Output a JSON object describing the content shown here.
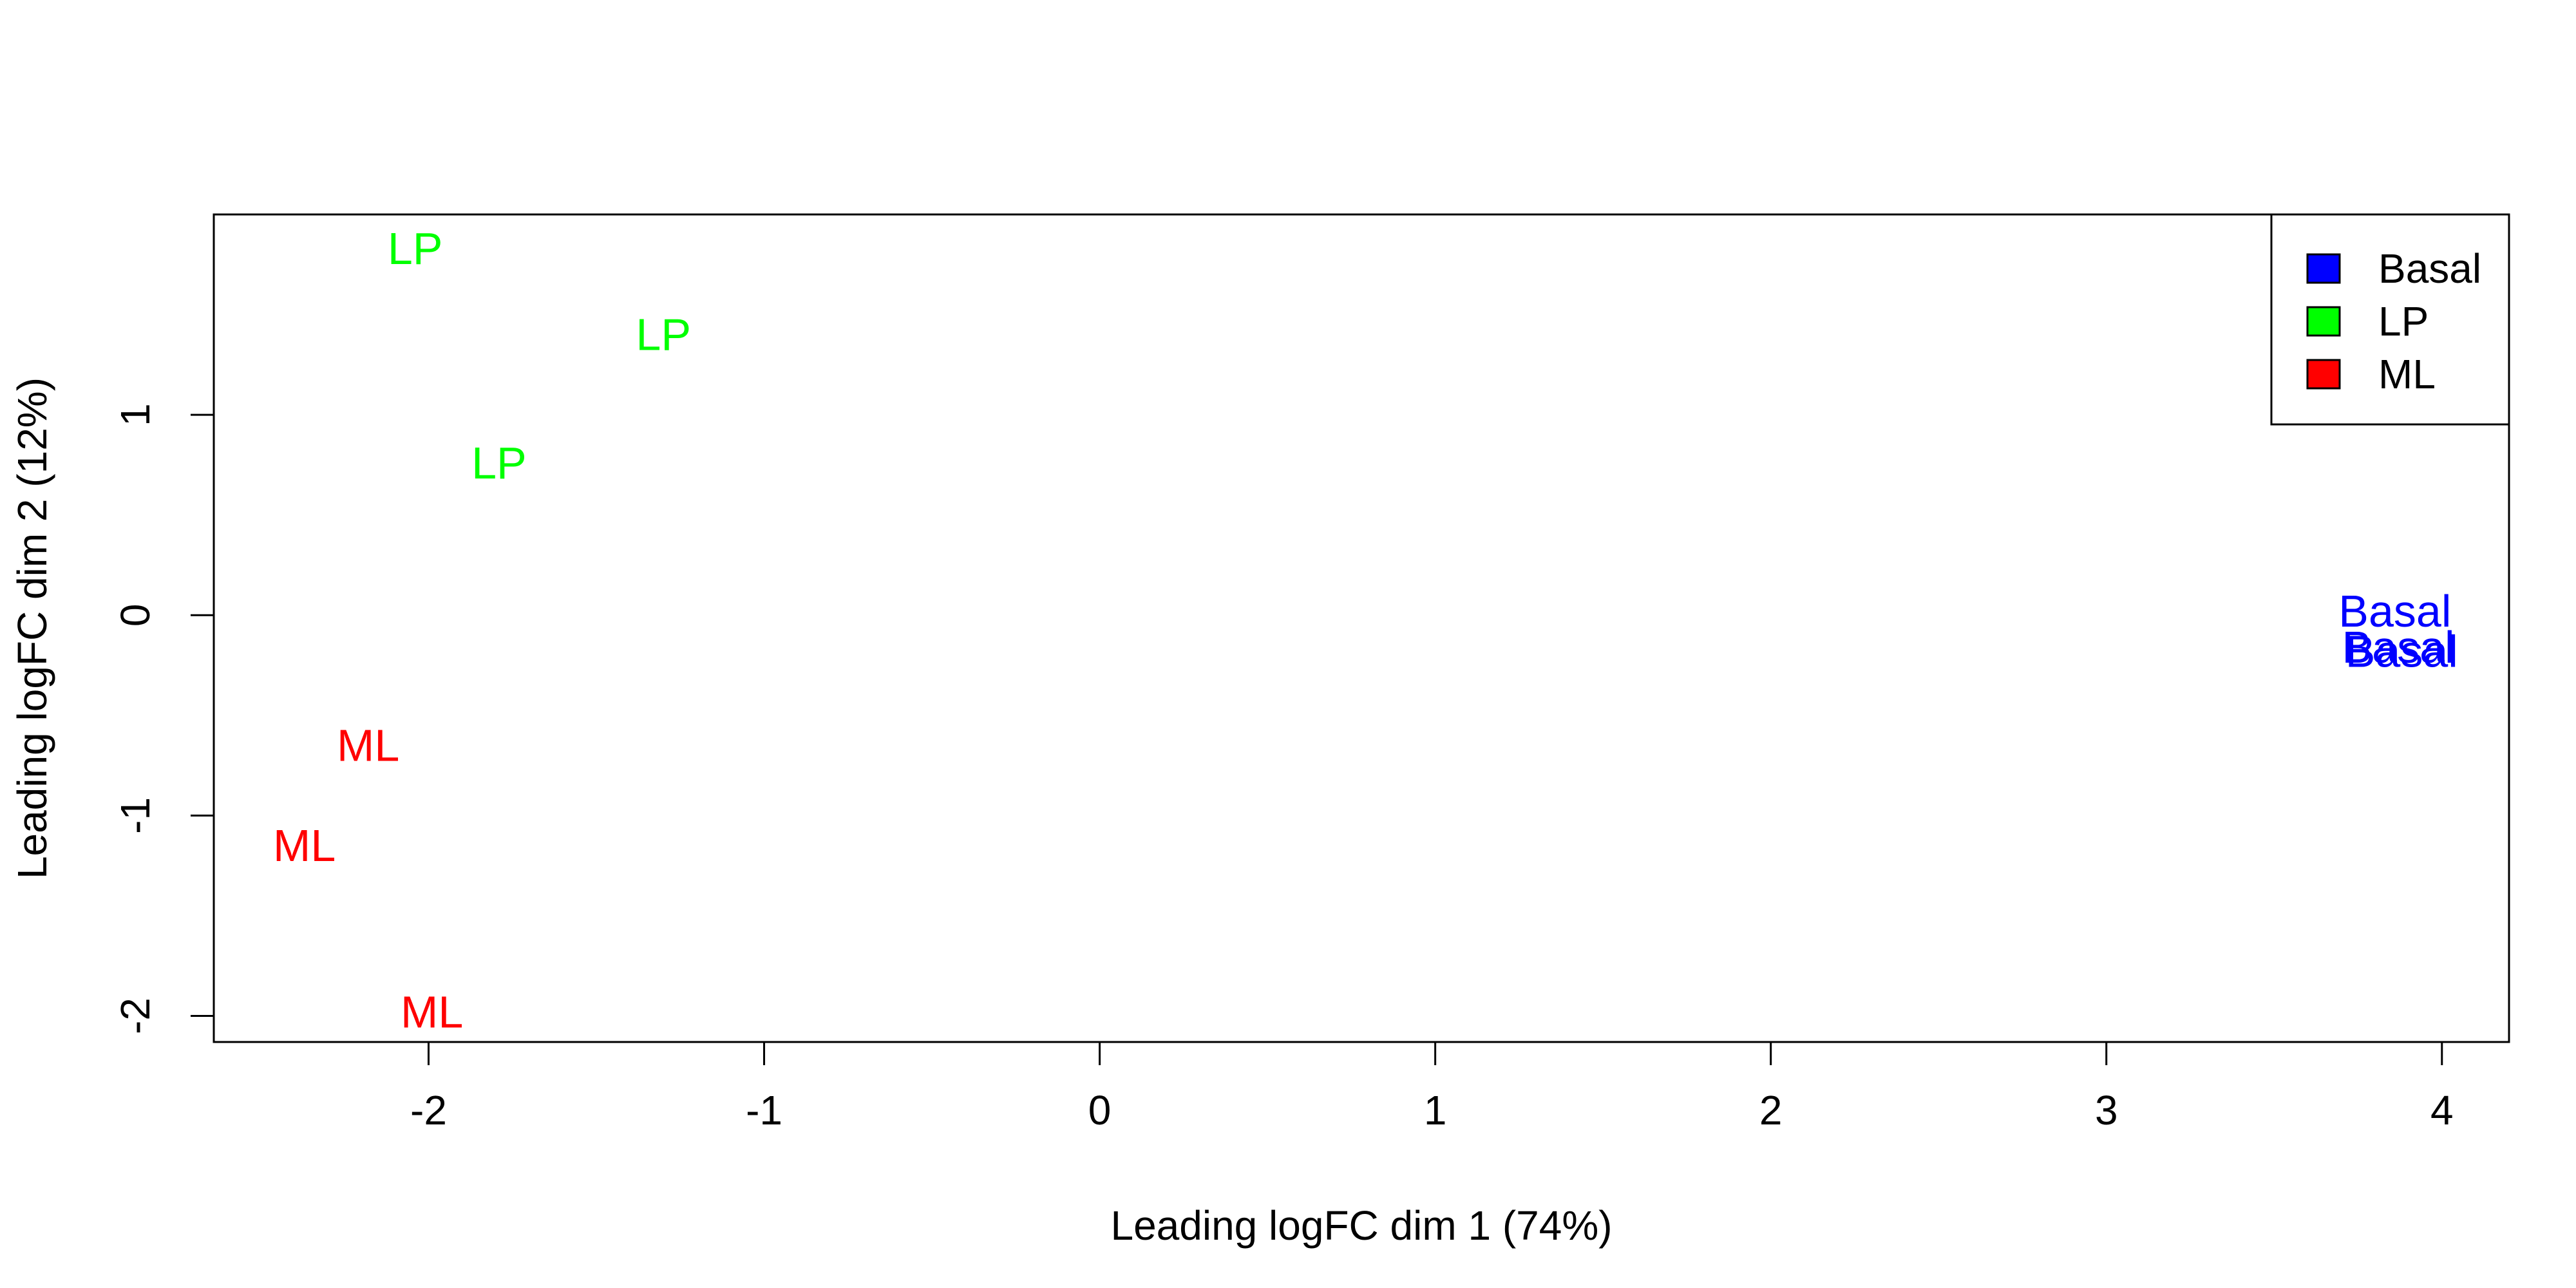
{
  "chart_data": {
    "type": "scatter",
    "title": "",
    "xlabel": "Leading logFC dim 1 (74%)",
    "ylabel": "Leading logFC dim 2 (12%)",
    "xlim": [
      -2.64,
      4.2
    ],
    "ylim": [
      -2.13,
      2.0
    ],
    "xticks": [
      -2,
      -1,
      0,
      1,
      2,
      3,
      4
    ],
    "yticks": [
      -2,
      -1,
      0,
      1
    ],
    "xtick_labels": [
      "-2",
      "-1",
      "0",
      "1",
      "2",
      "3",
      "4"
    ],
    "ytick_labels": [
      "-2",
      "-1",
      "0",
      "1"
    ],
    "grid": false,
    "legend_position": "top-right",
    "series": [
      {
        "name": "Basal",
        "color": "#0000ff",
        "label": "Basal",
        "points": [
          {
            "x": 3.86,
            "y": 0.02
          },
          {
            "x": 3.87,
            "y": -0.16
          },
          {
            "x": 3.88,
            "y": -0.18
          }
        ]
      },
      {
        "name": "LP",
        "color": "#00ff00",
        "label": "LP",
        "points": [
          {
            "x": -2.04,
            "y": 1.83
          },
          {
            "x": -1.3,
            "y": 1.4
          },
          {
            "x": -1.79,
            "y": 0.76
          }
        ]
      },
      {
        "name": "ML",
        "color": "#ff0000",
        "label": "ML",
        "points": [
          {
            "x": -2.18,
            "y": -0.65
          },
          {
            "x": -2.37,
            "y": -1.15
          },
          {
            "x": -1.99,
            "y": -1.98
          }
        ]
      }
    ]
  }
}
